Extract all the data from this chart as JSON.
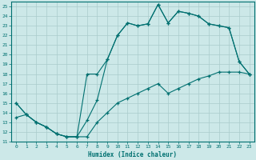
{
  "title": "",
  "xlabel": "Humidex (Indice chaleur)",
  "bg_color": "#cce8e8",
  "line_color": "#007070",
  "grid_color": "#aacccc",
  "xlim": [
    -0.5,
    23.5
  ],
  "ylim": [
    11,
    25.5
  ],
  "xticks": [
    0,
    1,
    2,
    3,
    4,
    5,
    6,
    7,
    8,
    9,
    10,
    11,
    12,
    13,
    14,
    15,
    16,
    17,
    18,
    19,
    20,
    21,
    22,
    23
  ],
  "yticks": [
    11,
    12,
    13,
    14,
    15,
    16,
    17,
    18,
    19,
    20,
    21,
    22,
    23,
    24,
    25
  ],
  "line1_x": [
    0,
    1,
    2,
    3,
    4,
    5,
    6,
    7,
    8,
    9,
    10,
    11,
    12,
    13,
    14,
    15,
    16,
    17,
    18,
    19,
    20,
    21,
    22,
    23
  ],
  "line1_y": [
    15.0,
    13.8,
    13.0,
    12.5,
    11.8,
    11.5,
    11.5,
    13.2,
    15.3,
    19.5,
    22.0,
    23.3,
    23.0,
    23.2,
    25.2,
    23.3,
    24.5,
    24.3,
    24.0,
    23.2,
    23.0,
    22.8,
    19.3,
    18.0
  ],
  "line2_x": [
    0,
    1,
    2,
    3,
    4,
    5,
    6,
    7,
    8,
    9,
    10,
    11,
    12,
    13,
    14,
    15,
    16,
    17,
    18,
    19,
    20,
    21,
    22,
    23
  ],
  "line2_y": [
    15.0,
    13.8,
    13.0,
    12.5,
    11.8,
    11.5,
    11.5,
    18.0,
    18.0,
    19.5,
    22.0,
    23.3,
    23.0,
    23.2,
    25.2,
    23.3,
    24.5,
    24.3,
    24.0,
    23.2,
    23.0,
    22.8,
    19.3,
    18.0
  ],
  "line3_x": [
    0,
    1,
    2,
    3,
    4,
    5,
    6,
    7,
    8,
    9,
    10,
    11,
    12,
    13,
    14,
    15,
    16,
    17,
    18,
    19,
    20,
    21,
    22,
    23
  ],
  "line3_y": [
    13.5,
    13.8,
    13.0,
    12.5,
    11.8,
    11.5,
    11.5,
    11.5,
    13.0,
    14.0,
    15.0,
    15.5,
    16.0,
    16.5,
    17.0,
    16.0,
    16.5,
    17.0,
    17.5,
    17.8,
    18.2,
    18.2,
    18.2,
    18.0
  ]
}
